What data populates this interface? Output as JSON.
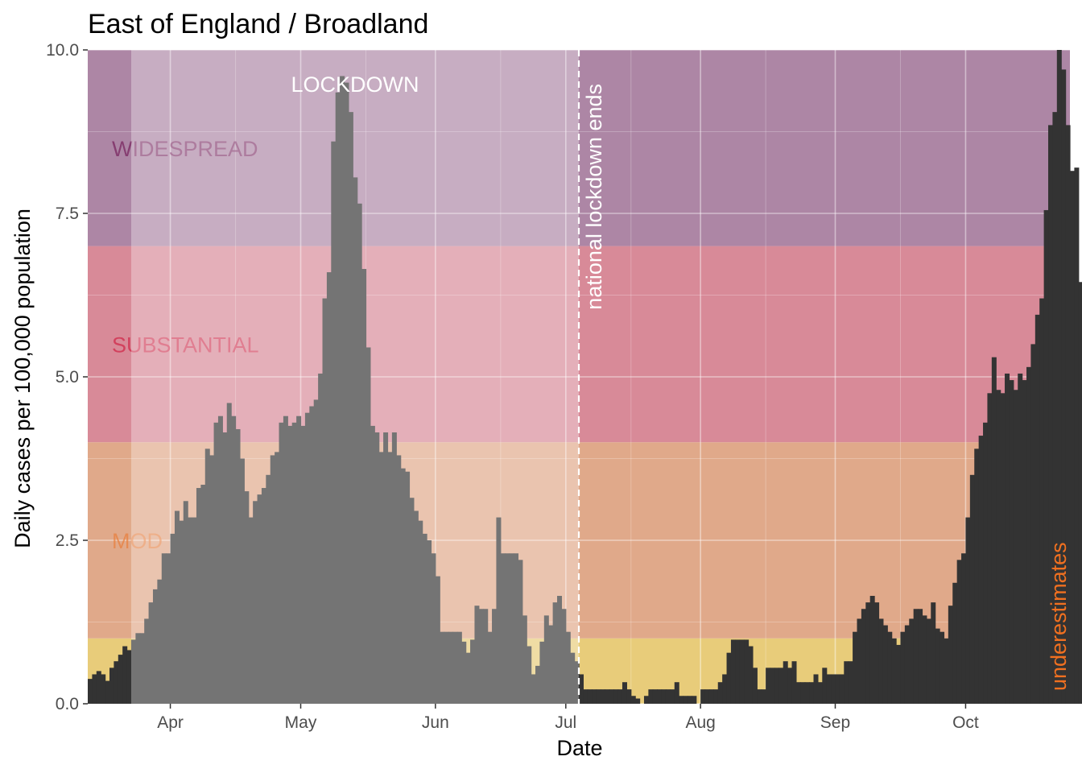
{
  "chart_data": {
    "type": "bar",
    "title": "East of England / Broadland",
    "xlabel": "Date",
    "ylabel": "Daily cases per 100,000 population",
    "ylim": [
      0,
      10
    ],
    "xlim": [
      "2020-03-13",
      "2020-10-25"
    ],
    "y_ticks": [
      {
        "value": 0,
        "label": "0.0"
      },
      {
        "value": 2.5,
        "label": "2.5"
      },
      {
        "value": 5,
        "label": "5.0"
      },
      {
        "value": 7.5,
        "label": "7.5"
      },
      {
        "value": 10,
        "label": "10.0"
      }
    ],
    "x_ticks": [
      {
        "date": "2020-04-01",
        "label": "Apr"
      },
      {
        "date": "2020-05-01",
        "label": "May"
      },
      {
        "date": "2020-06-01",
        "label": "Jun"
      },
      {
        "date": "2020-07-01",
        "label": "Jul"
      },
      {
        "date": "2020-08-01",
        "label": "Aug"
      },
      {
        "date": "2020-09-01",
        "label": "Sep"
      },
      {
        "date": "2020-10-01",
        "label": "Oct"
      }
    ],
    "bands": [
      {
        "label": "",
        "from": 0,
        "to": 1,
        "color": "#e8cc7a"
      },
      {
        "label": "MODERATE",
        "visible_label": "MOD",
        "from": 1,
        "to": 4,
        "color": "#e0a98a"
      },
      {
        "label": "SUBSTANTIAL",
        "from": 4,
        "to": 7,
        "color": "#d88a98"
      },
      {
        "label": "WIDESPREAD",
        "from": 7,
        "to": 10,
        "color": "#ad86a5"
      }
    ],
    "band_label_colors": {
      "MODERATE": "#e8803f",
      "SUBSTANTIAL": "#d0284a",
      "WIDESPREAD": "#7a2560"
    },
    "lockdown_period": {
      "label": "LOCKDOWN",
      "start": "2020-03-23",
      "end": "2020-07-04"
    },
    "lockdown_end_line": {
      "date": "2020-07-04",
      "label": "national lockdown ends"
    },
    "underestimate_label": "underestimates",
    "underestimate_color": "#f07020",
    "grid": true,
    "bar_color": "#333333",
    "start_date": "2020-03-13",
    "values": [
      0.38,
      0.45,
      0.5,
      0.45,
      0.35,
      0.55,
      0.65,
      0.75,
      0.88,
      0.82,
      0.98,
      1.08,
      1.08,
      1.3,
      1.55,
      1.75,
      1.9,
      2.3,
      2.3,
      2.6,
      2.95,
      2.8,
      3.1,
      2.85,
      2.85,
      3.3,
      3.35,
      3.9,
      3.8,
      4.3,
      4.4,
      4.15,
      4.6,
      4.4,
      4.2,
      3.75,
      3.25,
      2.85,
      3.1,
      3.2,
      3.3,
      3.5,
      3.8,
      3.85,
      4.3,
      4.4,
      4.25,
      4.3,
      4.4,
      4.25,
      4.45,
      4.55,
      4.65,
      5.05,
      6.2,
      6.6,
      8.6,
      9.35,
      9.6,
      9.5,
      9.05,
      8.05,
      7.65,
      6.65,
      5.45,
      4.25,
      4.15,
      3.85,
      4.15,
      3.85,
      4.15,
      3.8,
      3.6,
      3.55,
      3.15,
      2.95,
      2.8,
      2.6,
      2.5,
      2.3,
      1.95,
      1.1,
      1.1,
      1.1,
      1.1,
      1.1,
      0.95,
      0.78,
      0.98,
      1.5,
      1.45,
      1.45,
      1.1,
      1.45,
      2.85,
      2.3,
      2.3,
      2.3,
      2.3,
      2.2,
      1.35,
      0.88,
      0.45,
      0.58,
      0.95,
      1.35,
      1.2,
      1.55,
      1.65,
      1.45,
      1.1,
      0.78,
      0.65,
      0.45,
      0.22,
      0.22,
      0.22,
      0.22,
      0.22,
      0.22,
      0.22,
      0.22,
      0.22,
      0.33,
      0.22,
      0.12,
      0.08,
      0.0,
      0.12,
      0.22,
      0.22,
      0.22,
      0.22,
      0.22,
      0.22,
      0.33,
      0.12,
      0.12,
      0.12,
      0.12,
      0.0,
      0.22,
      0.22,
      0.22,
      0.22,
      0.33,
      0.45,
      0.78,
      0.98,
      0.98,
      0.98,
      0.98,
      0.88,
      0.55,
      0.22,
      0.22,
      0.55,
      0.55,
      0.55,
      0.55,
      0.65,
      0.55,
      0.65,
      0.33,
      0.33,
      0.33,
      0.33,
      0.45,
      0.33,
      0.55,
      0.45,
      0.45,
      0.45,
      0.45,
      0.65,
      0.65,
      1.1,
      1.3,
      1.45,
      1.55,
      1.65,
      1.55,
      1.3,
      1.2,
      1.1,
      1.0,
      0.9,
      1.1,
      1.2,
      1.3,
      1.45,
      1.45,
      1.35,
      1.3,
      1.55,
      1.15,
      1.1,
      1.0,
      1.5,
      1.85,
      2.2,
      2.3,
      2.85,
      3.5,
      3.9,
      4.1,
      4.3,
      4.75,
      5.3,
      4.8,
      4.75,
      5.05,
      4.95,
      4.8,
      5.05,
      4.95,
      5.15,
      5.5,
      5.95,
      6.2,
      7.55,
      8.85,
      9.05,
      10.0,
      9.7,
      8.85,
      8.15,
      8.2,
      6.45,
      6.1
    ]
  }
}
